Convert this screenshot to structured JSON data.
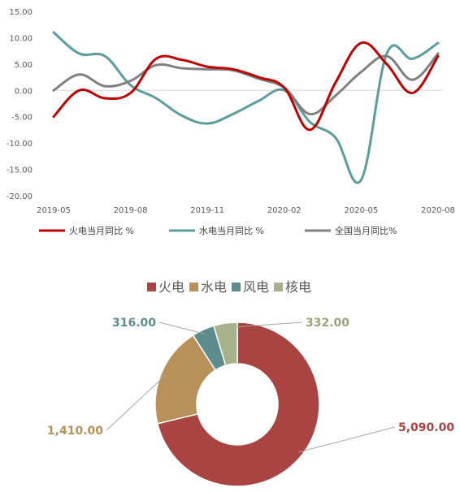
{
  "chart_data": [
    {
      "type": "line",
      "x": [
        "2019-05",
        "2019-06",
        "2019-07",
        "2019-08",
        "2019-09",
        "2019-10",
        "2019-11",
        "2019-12",
        "2020-01",
        "2020-02",
        "2020-03",
        "2020-04",
        "2020-05",
        "2020-06",
        "2020-07",
        "2020-08"
      ],
      "x_tick_labels": [
        "2019-05",
        "2019-08",
        "2019-11",
        "2020-02",
        "2020-05",
        "2020-08"
      ],
      "ylim": [
        -20,
        15
      ],
      "y_ticks": [
        15,
        10,
        5,
        0,
        -5,
        -10,
        -15,
        -20
      ],
      "y_tick_labels": [
        "15.00",
        "10.00",
        "5.00",
        "0.00",
        "-5.00",
        "-10.00",
        "-15.00",
        "-20.00"
      ],
      "grid": false,
      "legend_position": "bottom",
      "series": [
        {
          "name": "火电当月同比 %",
          "color": "#c00000",
          "values": [
            -5.0,
            0.0,
            -1.5,
            -0.5,
            6.0,
            5.8,
            4.5,
            4.0,
            2.5,
            0.5,
            -7.5,
            1.5,
            9.0,
            5.0,
            -0.5,
            6.5
          ]
        },
        {
          "name": "水电当月同比 %",
          "color": "#5c9c9c",
          "values": [
            11.0,
            7.0,
            6.5,
            1.0,
            -1.5,
            -4.8,
            -6.3,
            -4.5,
            -2.0,
            0.0,
            -6.0,
            -9.0,
            -17.0,
            7.0,
            6.0,
            9.0
          ]
        },
        {
          "name": "全国当月同比%",
          "color": "#808080",
          "values": [
            0.0,
            3.0,
            0.8,
            1.8,
            4.8,
            4.2,
            4.0,
            3.8,
            2.2,
            0.5,
            -4.5,
            -1.0,
            3.5,
            6.5,
            2.0,
            7.0
          ]
        }
      ]
    },
    {
      "type": "pie",
      "donut": true,
      "legend_position": "top",
      "slices": [
        {
          "name": "火电",
          "value": 5090.0,
          "label": "5,090.00",
          "color": "#a94442"
        },
        {
          "name": "水电",
          "value": 1410.0,
          "label": "1,410.00",
          "color": "#b8905a"
        },
        {
          "name": "风电",
          "value": 316.0,
          "label": "316.00",
          "color": "#5c8c8c"
        },
        {
          "name": "核电",
          "value": 332.0,
          "label": "332.00",
          "color": "#a8b28a"
        }
      ]
    }
  ]
}
